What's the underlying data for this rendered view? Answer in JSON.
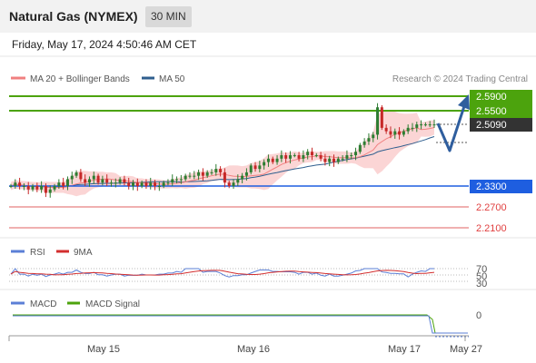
{
  "header": {
    "instrument": "Natural Gas (NYMEX)",
    "timeframe": "30 MIN",
    "datetime": "Friday, May 17, 2024 4:50:46 AM CET"
  },
  "legend": {
    "ma20_label": "MA 20 + Bollinger Bands",
    "ma50_label": "MA 50",
    "credit": "Research © 2024 Trading Central"
  },
  "colors": {
    "resistance": "#4ca30d",
    "support": "#1e5ee0",
    "level_red": "#e06060",
    "ma20": "#f08080",
    "ma50": "#2f5e8e",
    "band_fill": "#fbd5d5",
    "arrow": "#2f5e9e",
    "candle_up": "#2e7d32",
    "candle_down": "#c62828",
    "rsi": "#5b7fd6",
    "rsi_ma": "#d32f2f",
    "macd": "#5b7fd6",
    "macd_signal": "#4ca30d"
  },
  "price_labels": {
    "r2": "2.5900",
    "r1": "2.5500",
    "last": "2.5090",
    "s1": "2.3300",
    "s2": "2.2700",
    "s3": "2.2100"
  },
  "rsi_panel": {
    "label": "RSI",
    "ma_label": "9MA",
    "levels": [
      "70",
      "50",
      "30"
    ]
  },
  "macd_panel": {
    "label": "MACD",
    "signal_label": "MACD Signal",
    "zero": "0"
  },
  "x_axis": {
    "ticks": [
      "May 15",
      "May 16",
      "May 17",
      "May 27"
    ]
  },
  "chart_data": {
    "type": "candlestick",
    "ylim": [
      2.19,
      2.6
    ],
    "levels": {
      "resistance": [
        2.59,
        2.55
      ],
      "last": 2.509,
      "support": [
        2.33,
        2.27,
        2.21
      ]
    },
    "close_approx": [
      2.33,
      2.34,
      2.33,
      2.33,
      2.32,
      2.33,
      2.32,
      2.33,
      2.31,
      2.32,
      2.33,
      2.34,
      2.33,
      2.35,
      2.36,
      2.37,
      2.35,
      2.34,
      2.35,
      2.36,
      2.34,
      2.35,
      2.34,
      2.34,
      2.34,
      2.35,
      2.34,
      2.33,
      2.34,
      2.33,
      2.34,
      2.33,
      2.34,
      2.33,
      2.33,
      2.34,
      2.34,
      2.35,
      2.35,
      2.35,
      2.36,
      2.36,
      2.36,
      2.37,
      2.36,
      2.37,
      2.37,
      2.38,
      2.37,
      2.34,
      2.33,
      2.34,
      2.35,
      2.36,
      2.37,
      2.39,
      2.38,
      2.39,
      2.4,
      2.41,
      2.4,
      2.41,
      2.42,
      2.41,
      2.42,
      2.42,
      2.41,
      2.42,
      2.43,
      2.42,
      2.42,
      2.41,
      2.4,
      2.41,
      2.4,
      2.41,
      2.41,
      2.42,
      2.42,
      2.43,
      2.45,
      2.46,
      2.47,
      2.48,
      2.56,
      2.5,
      2.49,
      2.48,
      2.49,
      2.48,
      2.49,
      2.5,
      2.5,
      2.51,
      2.51,
      2.51,
      2.51,
      2.51
    ],
    "forecast_path": [
      2.509,
      2.55,
      2.48,
      2.59
    ],
    "rsi_levels": [
      70,
      50,
      30
    ],
    "macd_zero": 0
  }
}
